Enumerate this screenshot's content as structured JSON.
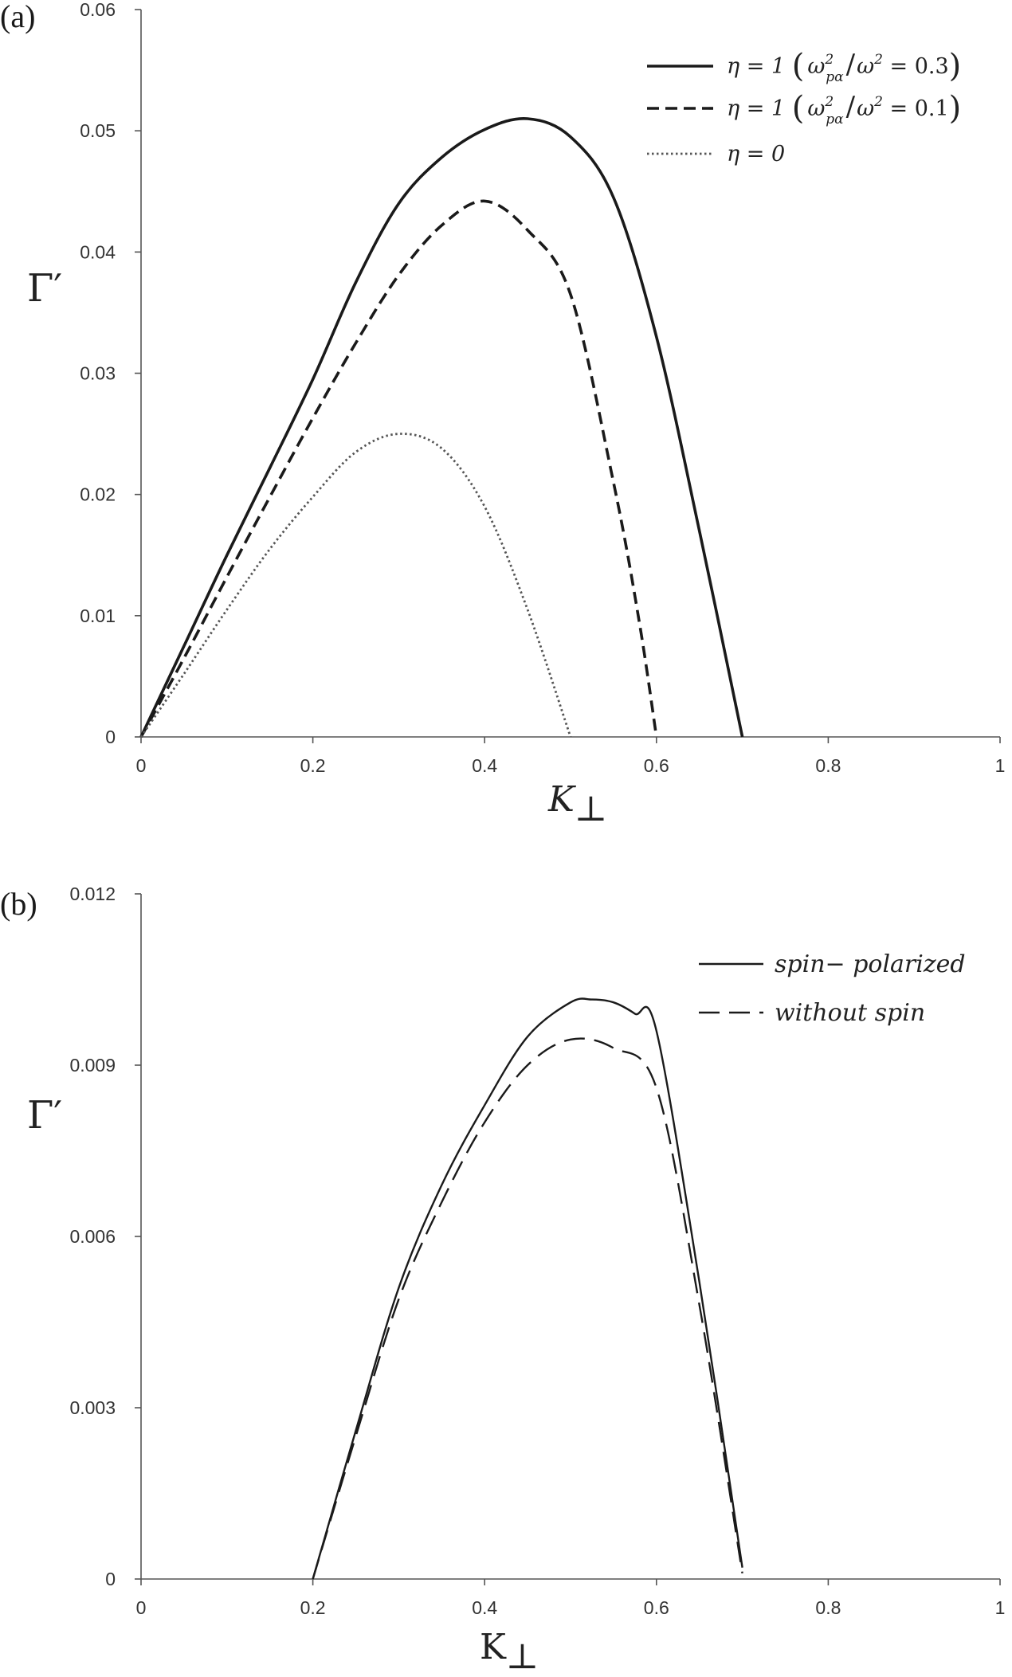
{
  "figure": {
    "panels": [
      {
        "panel_label": "(a)",
        "ylabel": "Γ′",
        "xlabel": "K",
        "xlabel_sub": "⊥",
        "x_ticks": [
          "0",
          "0.2",
          "0.4",
          "0.6",
          "0.8",
          "1"
        ],
        "y_ticks": [
          "0",
          "0.01",
          "0.02",
          "0.03",
          "0.04",
          "0.05",
          "0.06"
        ],
        "legend": [
          {
            "eta": "η = 1",
            "lparen": "(",
            "omega": "ω",
            "sub": "pα",
            "sup": "2",
            "slash": "/",
            "omega2": "ω",
            "sup2": "2",
            "eq": " = 0.3",
            "rparen": ")"
          },
          {
            "eta": "η = 1",
            "lparen": "(",
            "omega": "ω",
            "sub": "pα",
            "sup": "2",
            "slash": "/",
            "omega2": "ω",
            "sup2": "2",
            "eq": " = 0.1",
            "rparen": ")"
          },
          {
            "eta": "η = 0"
          }
        ]
      },
      {
        "panel_label": "(b)",
        "ylabel": "Γ′",
        "xlabel": "K",
        "xlabel_sub": "⊥",
        "x_ticks": [
          "0",
          "0.2",
          "0.4",
          "0.6",
          "0.8",
          "1"
        ],
        "y_ticks": [
          "0",
          "0.003",
          "0.006",
          "0.009",
          "0.012"
        ],
        "legend": [
          {
            "label": "spin− polarized"
          },
          {
            "label": "without spin"
          }
        ]
      }
    ]
  },
  "chart_data": [
    {
      "type": "line",
      "title": "",
      "xlabel": "K⊥",
      "ylabel": "Γ′",
      "xlim": [
        0,
        1
      ],
      "ylim": [
        0,
        0.06
      ],
      "grid": false,
      "legend_position": "top-right",
      "series": [
        {
          "name": "η = 1 (ω²pα/ω² = 0.3)",
          "style": "solid",
          "x": [
            0,
            0.05,
            0.1,
            0.15,
            0.2,
            0.25,
            0.3,
            0.35,
            0.4,
            0.45,
            0.5,
            0.55,
            0.6,
            0.65,
            0.7
          ],
          "y": [
            0,
            0.0075,
            0.015,
            0.0222,
            0.0295,
            0.0375,
            0.044,
            0.0478,
            0.0501,
            0.051,
            0.0495,
            0.0445,
            0.033,
            0.017,
            0
          ]
        },
        {
          "name": "η = 1 (ω²pα/ω² = 0.1)",
          "style": "dashed",
          "x": [
            0,
            0.05,
            0.1,
            0.15,
            0.2,
            0.25,
            0.3,
            0.35,
            0.4,
            0.45,
            0.5,
            0.55,
            0.58,
            0.6
          ],
          "y": [
            0,
            0.0065,
            0.0132,
            0.0198,
            0.0263,
            0.0325,
            0.0381,
            0.0422,
            0.0442,
            0.0418,
            0.0365,
            0.021,
            0.0095,
            0
          ]
        },
        {
          "name": "η = 0",
          "style": "dotted",
          "x": [
            0,
            0.05,
            0.1,
            0.15,
            0.2,
            0.25,
            0.3,
            0.35,
            0.4,
            0.45,
            0.5
          ],
          "y": [
            0,
            0.0052,
            0.0105,
            0.0155,
            0.0198,
            0.0235,
            0.025,
            0.0238,
            0.019,
            0.0105,
            0
          ]
        }
      ]
    },
    {
      "type": "line",
      "title": "",
      "xlabel": "K⊥",
      "ylabel": "Γ′",
      "xlim": [
        0,
        1
      ],
      "ylim": [
        0,
        0.012
      ],
      "grid": false,
      "legend_position": "top-right",
      "series": [
        {
          "name": "spin− polarized",
          "style": "solid",
          "x": [
            0.2,
            0.25,
            0.3,
            0.35,
            0.4,
            0.45,
            0.5,
            0.525,
            0.55,
            0.575,
            0.6,
            0.65,
            0.7
          ],
          "y": [
            0,
            0.0026,
            0.0051,
            0.0069,
            0.0083,
            0.0095,
            0.0101,
            0.01015,
            0.0101,
            0.0099,
            0.0096,
            0.0052,
            0.0002
          ]
        },
        {
          "name": "without spin",
          "style": "dashed",
          "x": [
            0.2,
            0.25,
            0.3,
            0.35,
            0.4,
            0.45,
            0.5,
            0.55,
            0.6,
            0.65,
            0.7
          ],
          "y": [
            0,
            0.0025,
            0.0049,
            0.0066,
            0.008,
            0.009,
            0.00945,
            0.0093,
            0.0086,
            0.0048,
            0.0001
          ]
        }
      ]
    }
  ]
}
